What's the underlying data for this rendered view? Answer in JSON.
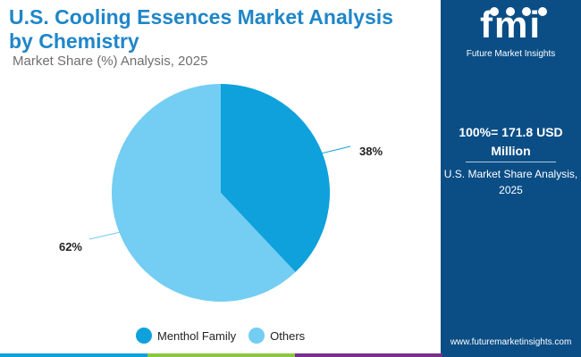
{
  "header": {
    "title": "U.S. Cooling Essences Market Analysis by Chemistry",
    "subtitle": "Market Share (%) Analysis, 2025"
  },
  "sidebar": {
    "logo_text": "fmi",
    "logo_subtitle": "Future Market Insights",
    "total_label": "100%= 171.8 USD Million",
    "share_label": "U.S. Market Share Analysis, 2025",
    "website": "www.futuremarketinsights.com"
  },
  "chart_data": {
    "type": "pie",
    "categories": [
      "Menthol Family",
      "Others"
    ],
    "values": [
      38,
      62
    ],
    "value_labels": [
      "38%",
      "62%"
    ],
    "colors": [
      "#0ea1dc",
      "#74cdf2"
    ],
    "legend_position": "bottom"
  },
  "accent_colors": [
    "#0b4e86",
    "#1f86c8",
    "#8dc63f",
    "#7a2e8e",
    "#0ea1dc"
  ]
}
